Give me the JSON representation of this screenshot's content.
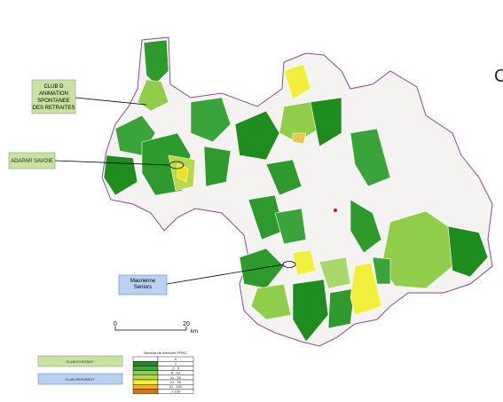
{
  "callouts": [
    {
      "label": "CLUB D ANIMATION SPONTANEE DES RETRAITES"
    },
    {
      "label": "ADAPAR SAVOIE"
    },
    {
      "label": "Maurienne Seniors"
    }
  ],
  "corner_text": "C",
  "scale": {
    "start": "0",
    "end": "20",
    "unit": "km"
  },
  "legend": {
    "existing": "CLUB EXISTANT",
    "referent": "CLUB REFERENT",
    "table_title": "Nombre de licenciés FFRS",
    "classes": [
      "0",
      "1",
      "2 - 5",
      "6 - 10",
      "11 - 20",
      "21 - 50",
      "51 - 100",
      "> 100"
    ]
  }
}
